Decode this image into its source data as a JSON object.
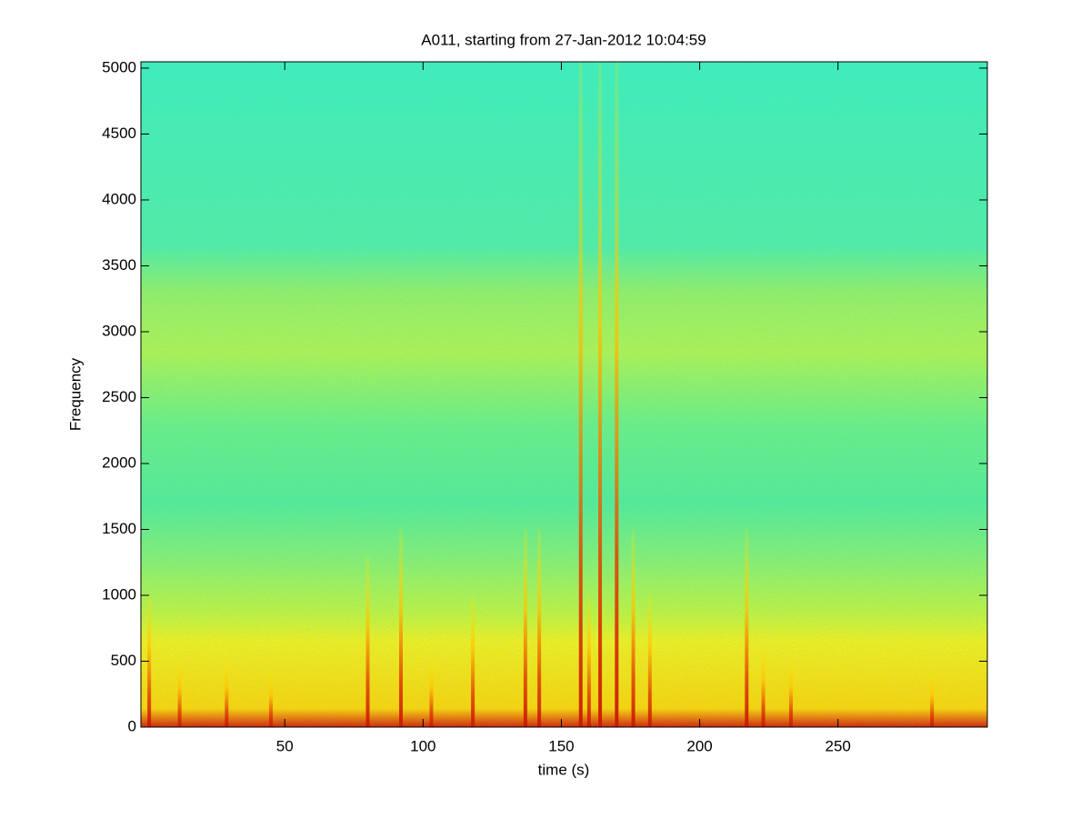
{
  "chart_data": {
    "type": "spectrogram",
    "title": "A011, starting from 27-Jan-2012 10:04:59",
    "xlabel": "time (s)",
    "ylabel": "Frequency",
    "xlim": [
      -2,
      304
    ],
    "ylim": [
      0,
      5048
    ],
    "xticks": [
      50,
      100,
      150,
      200,
      250
    ],
    "yticks": [
      0,
      500,
      1000,
      1500,
      2000,
      2500,
      3000,
      3500,
      4000,
      4500,
      5000
    ],
    "color_stops": [
      {
        "value": 0,
        "color": "#d42000"
      },
      {
        "value": 70,
        "color": "#f07a00"
      },
      {
        "value": 140,
        "color": "#ffd400"
      },
      {
        "value": 650,
        "color": "#f4f018"
      },
      {
        "value": 850,
        "color": "#c4f438"
      },
      {
        "value": 1300,
        "color": "#84f070"
      },
      {
        "value": 1700,
        "color": "#54ec92"
      },
      {
        "value": 2300,
        "color": "#6cf080"
      },
      {
        "value": 2850,
        "color": "#b0f44c"
      },
      {
        "value": 3300,
        "color": "#94f062"
      },
      {
        "value": 3650,
        "color": "#52eea2"
      },
      {
        "value": 5048,
        "color": "#3ef0b6"
      }
    ],
    "events": [
      {
        "time": 1,
        "top": 1000
      },
      {
        "time": 12,
        "top": 500
      },
      {
        "time": 29,
        "top": 500
      },
      {
        "time": 45,
        "top": 400
      },
      {
        "time": 80,
        "top": 1300
      },
      {
        "time": 92,
        "top": 1500
      },
      {
        "time": 103,
        "top": 500
      },
      {
        "time": 118,
        "top": 1000
      },
      {
        "time": 137,
        "top": 1500
      },
      {
        "time": 142,
        "top": 1500
      },
      {
        "time": 157,
        "top": 5048
      },
      {
        "time": 160,
        "top": 1000
      },
      {
        "time": 164,
        "top": 5048
      },
      {
        "time": 170,
        "top": 5048
      },
      {
        "time": 176,
        "top": 1500
      },
      {
        "time": 182,
        "top": 1000
      },
      {
        "time": 217,
        "top": 1500
      },
      {
        "time": 223,
        "top": 600
      },
      {
        "time": 233,
        "top": 500
      },
      {
        "time": 284,
        "top": 400
      }
    ]
  }
}
